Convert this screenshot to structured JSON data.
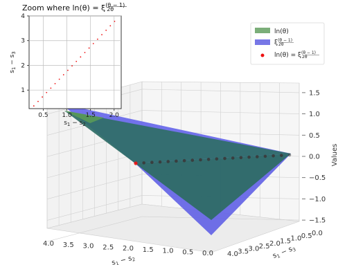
{
  "chart_data": [
    {
      "type": "surface3d",
      "series": [
        {
          "name": "ln(θ)",
          "color": "#5a9a58"
        },
        {
          "name": "ξ^((θ−1)/2θ)",
          "color": "#5555e0"
        },
        {
          "name": "ln(θ) = ξ^((θ−1)/2θ)",
          "color": "#ee1111"
        }
      ],
      "x_axis": {
        "label": "s₁ − s₂",
        "ticks": [
          "4.0",
          "3.5",
          "3.0",
          "2.5",
          "2.0",
          "1.5",
          "1.0",
          "0.5",
          "0.0"
        ]
      },
      "y_axis": {
        "label": "s₁ − s₃",
        "ticks": [
          "4.0",
          "3.5",
          "3.0",
          "2.5",
          "2.0",
          "1.5",
          "1.0",
          "0.5",
          "0.0"
        ]
      },
      "z_axis": {
        "label": "Values",
        "ticks": [
          "−1.5",
          "−1.0",
          "−0.5",
          "0.0",
          "0.5",
          "1.0",
          "1.5"
        ],
        "zlim": [
          -1.6,
          1.6
        ]
      },
      "grid": true,
      "legend_position": "top-right"
    },
    {
      "type": "scatter",
      "title": "Zoom where ln(θ) = ξ^((θ−1)/2θ)",
      "xlabel": "s₁ − s₂",
      "ylabel": "s₁ − s₃",
      "xticks": [
        "0.5",
        "1.0",
        "1.5",
        "2.0"
      ],
      "yticks": [
        "1",
        "2",
        "3",
        "4"
      ],
      "xlim": [
        0.2,
        2.15
      ],
      "ylim": [
        0.25,
        4.0
      ],
      "grid": true,
      "series": [
        {
          "color": "#ee1111",
          "points": [
            [
              0.3,
              0.36
            ],
            [
              0.39,
              0.54
            ],
            [
              0.48,
              0.72
            ],
            [
              0.57,
              0.9
            ],
            [
              0.66,
              1.08
            ],
            [
              0.75,
              1.26
            ],
            [
              0.84,
              1.44
            ],
            [
              0.93,
              1.62
            ],
            [
              1.02,
              1.8
            ],
            [
              1.11,
              1.98
            ],
            [
              1.2,
              2.16
            ],
            [
              1.29,
              2.34
            ],
            [
              1.38,
              2.52
            ],
            [
              1.47,
              2.7
            ],
            [
              1.56,
              2.88
            ],
            [
              1.65,
              3.06
            ],
            [
              1.74,
              3.24
            ],
            [
              1.83,
              3.42
            ],
            [
              1.92,
              3.6
            ],
            [
              2.01,
              3.78
            ]
          ]
        }
      ]
    }
  ]
}
